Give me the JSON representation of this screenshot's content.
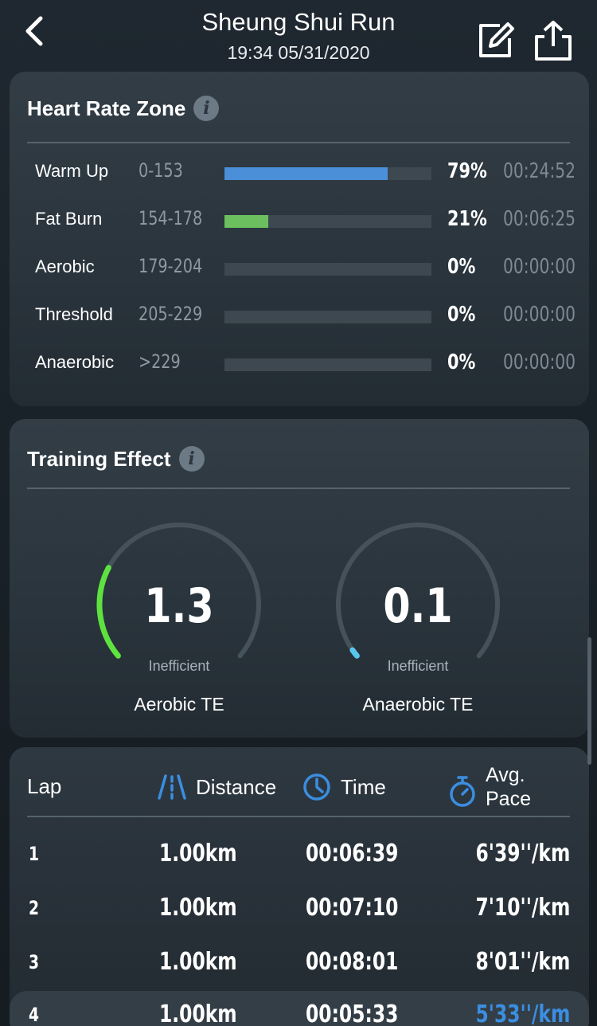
{
  "header": {
    "title": "Sheung Shui Run",
    "subtitle": "19:34 05/31/2020",
    "back_icon": "chevron-left-icon",
    "edit_icon": "edit-icon",
    "share_icon": "share-icon"
  },
  "heart_rate": {
    "title": "Heart Rate Zone",
    "info_icon": "i",
    "zones": [
      {
        "name": "Warm Up",
        "range": "0-153",
        "percent": "79%",
        "fill_fraction": 0.79,
        "color": "#4a8fd8",
        "time": "00:24:52"
      },
      {
        "name": "Fat Burn",
        "range": "154-178",
        "percent": "21%",
        "fill_fraction": 0.21,
        "color": "#6bbf5e",
        "time": "00:06:25"
      },
      {
        "name": "Aerobic",
        "range": "179-204",
        "percent": "0%",
        "fill_fraction": 0,
        "color": "#3d4851",
        "time": "00:00:00"
      },
      {
        "name": "Threshold",
        "range": "205-229",
        "percent": "0%",
        "fill_fraction": 0,
        "color": "#3d4851",
        "time": "00:00:00"
      },
      {
        "name": "Anaerobic",
        "range": ">229",
        "percent": "0%",
        "fill_fraction": 0,
        "color": "#3d4851",
        "time": "00:00:00"
      }
    ]
  },
  "training_effect": {
    "title": "Training Effect",
    "info_icon": "i",
    "aerobic": {
      "value": "1.3",
      "status": "Inefficient",
      "label": "Aerobic TE",
      "color": "#5ee23f",
      "fraction": 0.26
    },
    "anaerobic": {
      "value": "0.1",
      "status": "Inefficient",
      "label": "Anaerobic TE",
      "color": "#59c8ef",
      "fraction": 0.02
    }
  },
  "laps": {
    "headers": {
      "lap": "Lap",
      "distance": "Distance",
      "time": "Time",
      "pace_line1": "Avg.",
      "pace_line2": "Pace"
    },
    "accent": "#3b8ee0",
    "rows": [
      {
        "lap": "1",
        "distance": "1.00km",
        "time": "00:06:39",
        "pace": "6'39''/km"
      },
      {
        "lap": "2",
        "distance": "1.00km",
        "time": "00:07:10",
        "pace": "7'10''/km"
      },
      {
        "lap": "3",
        "distance": "1.00km",
        "time": "00:08:01",
        "pace": "8'01''/km"
      },
      {
        "lap": "4",
        "distance": "1.00km",
        "time": "00:05:33",
        "pace": "5'33''/km"
      }
    ]
  }
}
